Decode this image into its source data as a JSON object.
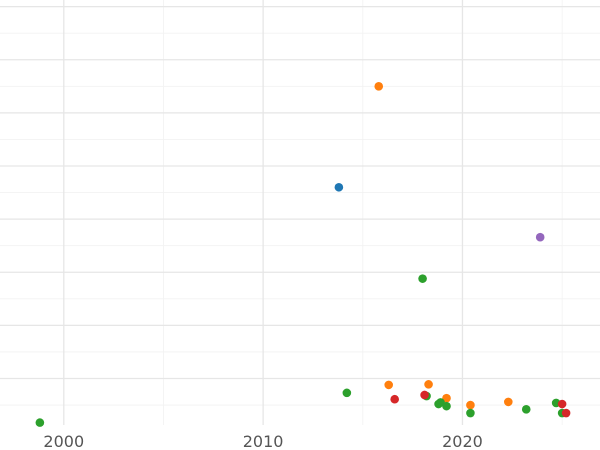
{
  "chart_data": {
    "type": "scatter",
    "title": "",
    "xlabel": "",
    "ylabel": "",
    "xlim": [
      1996.8,
      2026.9
    ],
    "ylim": [
      0.125,
      8.125
    ],
    "x_ticks": [
      2000,
      2010,
      2020
    ],
    "x_tick_labels": [
      "2000",
      "2010",
      "2020"
    ],
    "y_gridlines": [
      1,
      2,
      3,
      4,
      5,
      6,
      7,
      8
    ],
    "x_minor_gridlines": [
      2005,
      2015,
      2025
    ],
    "y_minor_gridlines": [
      0.5,
      1.5,
      2.5,
      3.5,
      4.5,
      5.5,
      6.5,
      7.5
    ],
    "grid": true,
    "legend": "none",
    "colors": {
      "blue": "#1f77b4",
      "orange": "#ff7f0e",
      "green": "#2ca02c",
      "red": "#d62728",
      "purple": "#9467bd",
      "grid": "#e6e6e6",
      "tick_label": "#555555"
    },
    "series": [
      {
        "color": "#1f77b4",
        "points": [
          [
            2013.8,
            4.6
          ]
        ]
      },
      {
        "color": "#9467bd",
        "points": [
          [
            2023.9,
            3.66
          ]
        ]
      },
      {
        "color": "#ff7f0e",
        "points": [
          [
            2015.8,
            6.5
          ],
          [
            2016.3,
            0.88
          ],
          [
            2018.3,
            0.89
          ],
          [
            2019.2,
            0.63
          ],
          [
            2020.4,
            0.5
          ],
          [
            2022.3,
            0.56
          ]
        ]
      },
      {
        "color": "#2ca02c",
        "points": [
          [
            1998.8,
            0.17
          ],
          [
            2014.2,
            0.73
          ],
          [
            2018.0,
            2.88
          ],
          [
            2018.2,
            0.67
          ],
          [
            2018.8,
            0.52
          ],
          [
            2018.9,
            0.55
          ],
          [
            2019.2,
            0.48
          ],
          [
            2020.4,
            0.35
          ],
          [
            2023.2,
            0.42
          ],
          [
            2024.7,
            0.54
          ],
          [
            2025.0,
            0.35
          ]
        ]
      },
      {
        "color": "#d62728",
        "points": [
          [
            2016.6,
            0.61
          ],
          [
            2018.1,
            0.69
          ],
          [
            2025.0,
            0.52
          ],
          [
            2025.2,
            0.35
          ]
        ]
      }
    ]
  }
}
